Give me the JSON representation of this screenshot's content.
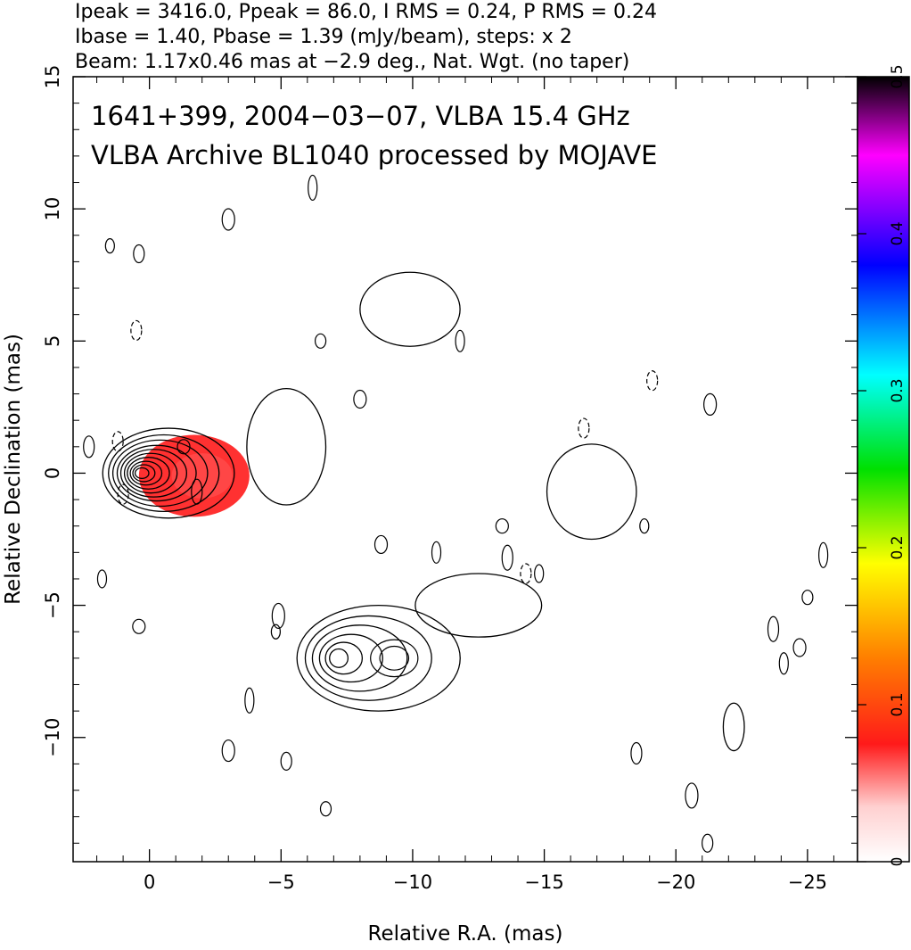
{
  "header": {
    "line1": "Ipeak = 3416.0, Ppeak = 86.0, I RMS = 0.24, P RMS = 0.24",
    "line2": "Ibase = 1.40, Pbase = 1.39 (mJy/beam), steps: x 2",
    "line3": "Beam: 1.17x0.46 mas at −2.9 deg., Nat. Wgt. (no taper)"
  },
  "chart_data": {
    "type": "contour",
    "title_line1": "1641+399, 2004−03−07, VLBA 15.4 GHz",
    "title_line2": "VLBA Archive BL1040 processed by MOJAVE",
    "xlabel": "Relative R.A. (mas)",
    "ylabel": "Relative Declination (mas)",
    "xlim": [
      2.9,
      -26.9
    ],
    "ylim": [
      -14.7,
      15
    ],
    "x_ticks": [
      0,
      -5,
      -10,
      -15,
      -20,
      -25
    ],
    "x_tick_labels": [
      "0",
      "−5",
      "−10",
      "−15",
      "−20",
      "−25"
    ],
    "y_ticks": [
      -10,
      -5,
      0,
      5,
      10,
      15
    ],
    "y_tick_labels": [
      "−10",
      "−5",
      "0",
      "5",
      "10",
      "15"
    ],
    "colorbar": {
      "range": [
        0,
        0.5
      ],
      "ticks": [
        0,
        0.1,
        0.2,
        0.3,
        0.4,
        0.5
      ],
      "tick_labels": [
        "0",
        "0.1",
        "0.2",
        "0.3",
        "0.4",
        "0.5"
      ],
      "colors": [
        "#ffffff",
        "#ffd0d0",
        "#ff1a1a",
        "#ff7f00",
        "#ffff00",
        "#00e000",
        "#00ffff",
        "#0000ff",
        "#ff00ff",
        "#000000"
      ]
    },
    "core_component": {
      "center": [
        0,
        0
      ],
      "contour_radii": [
        [
          2.5,
          1.7
        ],
        [
          2.1,
          1.45
        ],
        [
          1.8,
          1.25
        ],
        [
          1.5,
          1.05
        ],
        [
          1.25,
          0.9
        ],
        [
          1.0,
          0.75
        ],
        [
          0.8,
          0.6
        ],
        [
          0.6,
          0.45
        ],
        [
          0.42,
          0.32
        ],
        [
          0.26,
          0.2
        ]
      ],
      "polarization_region": {
        "center": [
          -1.7,
          -0.1
        ],
        "rx": 2.1,
        "ry": 1.55,
        "color": "#ff2020"
      }
    },
    "secondary_component": {
      "center": [
        -7.2,
        -7.0
      ],
      "contour_radii": [
        [
          3.1,
          2.0
        ],
        [
          2.4,
          1.6
        ],
        [
          1.8,
          1.25
        ],
        [
          1.2,
          0.9
        ],
        [
          0.7,
          0.6
        ],
        [
          0.35,
          0.35
        ]
      ],
      "sub_peak": [
        -9.3,
        -7.0
      ]
    },
    "extended_regions": [
      {
        "center": [
          -5.2,
          1.0
        ],
        "rx": 1.5,
        "ry": 2.2
      },
      {
        "center": [
          -9.9,
          6.2
        ],
        "rx": 1.9,
        "ry": 1.4
      },
      {
        "center": [
          -16.8,
          -0.7
        ],
        "rx": 1.7,
        "ry": 1.8
      },
      {
        "center": [
          -12.5,
          -5.0
        ],
        "rx": 2.4,
        "ry": 1.2
      },
      {
        "center": [
          -22.2,
          -9.6
        ],
        "rx": 0.4,
        "ry": 0.9
      }
    ],
    "small_contours": [
      [
        1.5,
        8.6
      ],
      [
        0.4,
        8.3
      ],
      [
        -3.0,
        9.6
      ],
      [
        -6.2,
        10.8
      ],
      [
        -6.5,
        5.0
      ],
      [
        -8.0,
        2.8
      ],
      [
        -11.8,
        5.0
      ],
      [
        -1.8,
        -0.7
      ],
      [
        -1.3,
        1.0
      ],
      [
        1.8,
        -4.0
      ],
      [
        2.3,
        1.0
      ],
      [
        -4.9,
        -5.4
      ],
      [
        -4.8,
        -6.0
      ],
      [
        -5.2,
        -10.9
      ],
      [
        -3.0,
        -10.5
      ],
      [
        -3.8,
        -8.6
      ],
      [
        -6.7,
        -12.7
      ],
      [
        -8.8,
        -2.7
      ],
      [
        -10.9,
        -3.0
      ],
      [
        -13.6,
        -3.2
      ],
      [
        -13.4,
        -2.0
      ],
      [
        -14.8,
        -3.8
      ],
      [
        -18.5,
        -10.6
      ],
      [
        -20.6,
        -12.2
      ],
      [
        -18.8,
        -2.0
      ],
      [
        -21.2,
        -14.0
      ],
      [
        -21.3,
        2.6
      ],
      [
        -25.6,
        -3.1
      ],
      [
        -25.0,
        -4.7
      ],
      [
        -24.7,
        -6.6
      ],
      [
        -24.1,
        -7.2
      ],
      [
        -23.7,
        -5.9
      ],
      [
        0.4,
        -5.8
      ]
    ],
    "dashed_contours": [
      [
        0.5,
        5.4
      ],
      [
        1.0,
        -0.8
      ],
      [
        1.2,
        1.2
      ],
      [
        -16.5,
        1.7
      ],
      [
        -19.1,
        3.5
      ],
      [
        -14.3,
        -3.8
      ]
    ]
  }
}
